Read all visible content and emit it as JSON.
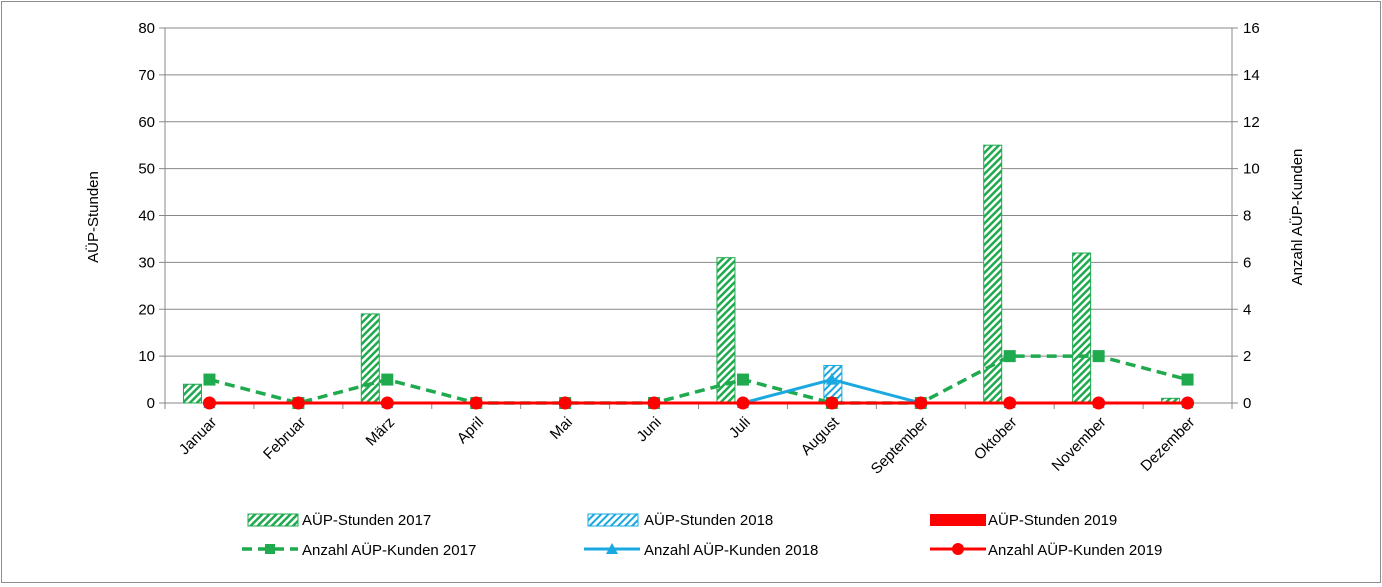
{
  "chart_data": {
    "type": "bar",
    "title": "",
    "categories": [
      "Januar",
      "Februar",
      "März",
      "April",
      "Mai",
      "Juni",
      "Juli",
      "August",
      "September",
      "Oktober",
      "November",
      "Dezember"
    ],
    "ylabel": "AÜP-Stunden",
    "y2label": "Anzahl AÜP-Kunden",
    "ylim": [
      0,
      80
    ],
    "y2lim": [
      0,
      16
    ],
    "yticks": [
      "0",
      "10",
      "20",
      "30",
      "40",
      "50",
      "60",
      "70",
      "80"
    ],
    "y2ticks": [
      "0",
      "2",
      "4",
      "6",
      "8",
      "10",
      "12",
      "14",
      "16"
    ],
    "grid": "horizontal",
    "legend_position": "bottom",
    "colors": {
      "green": "#1faa4e",
      "blue": "#1aa8e0",
      "red": "#ff0000"
    },
    "bar_series": [
      {
        "name": "AÜP-Stunden 2017",
        "values": [
          4,
          0,
          19,
          0,
          0,
          0,
          31,
          0,
          0,
          55,
          32,
          1
        ]
      },
      {
        "name": "AÜP-Stunden 2018",
        "values": [
          0,
          0,
          0,
          0,
          0,
          0,
          0,
          8,
          0,
          0,
          0,
          0
        ]
      },
      {
        "name": "AÜP-Stunden 2019",
        "values": [
          0,
          0,
          0,
          0,
          0,
          0,
          0,
          0,
          0,
          0,
          0,
          0
        ]
      }
    ],
    "line_series": [
      {
        "name": "Anzahl AÜP-Kunden 2017",
        "values": [
          1,
          0,
          1,
          0,
          0,
          0,
          1,
          0,
          0,
          2,
          2,
          1
        ]
      },
      {
        "name": "Anzahl AÜP-Kunden 2018",
        "values": [
          0,
          0,
          0,
          0,
          0,
          0,
          0,
          1,
          0,
          0,
          0,
          0
        ]
      },
      {
        "name": "Anzahl AÜP-Kunden 2019",
        "values": [
          0,
          0,
          0,
          0,
          0,
          0,
          0,
          0,
          0,
          0,
          0,
          0
        ]
      }
    ]
  }
}
